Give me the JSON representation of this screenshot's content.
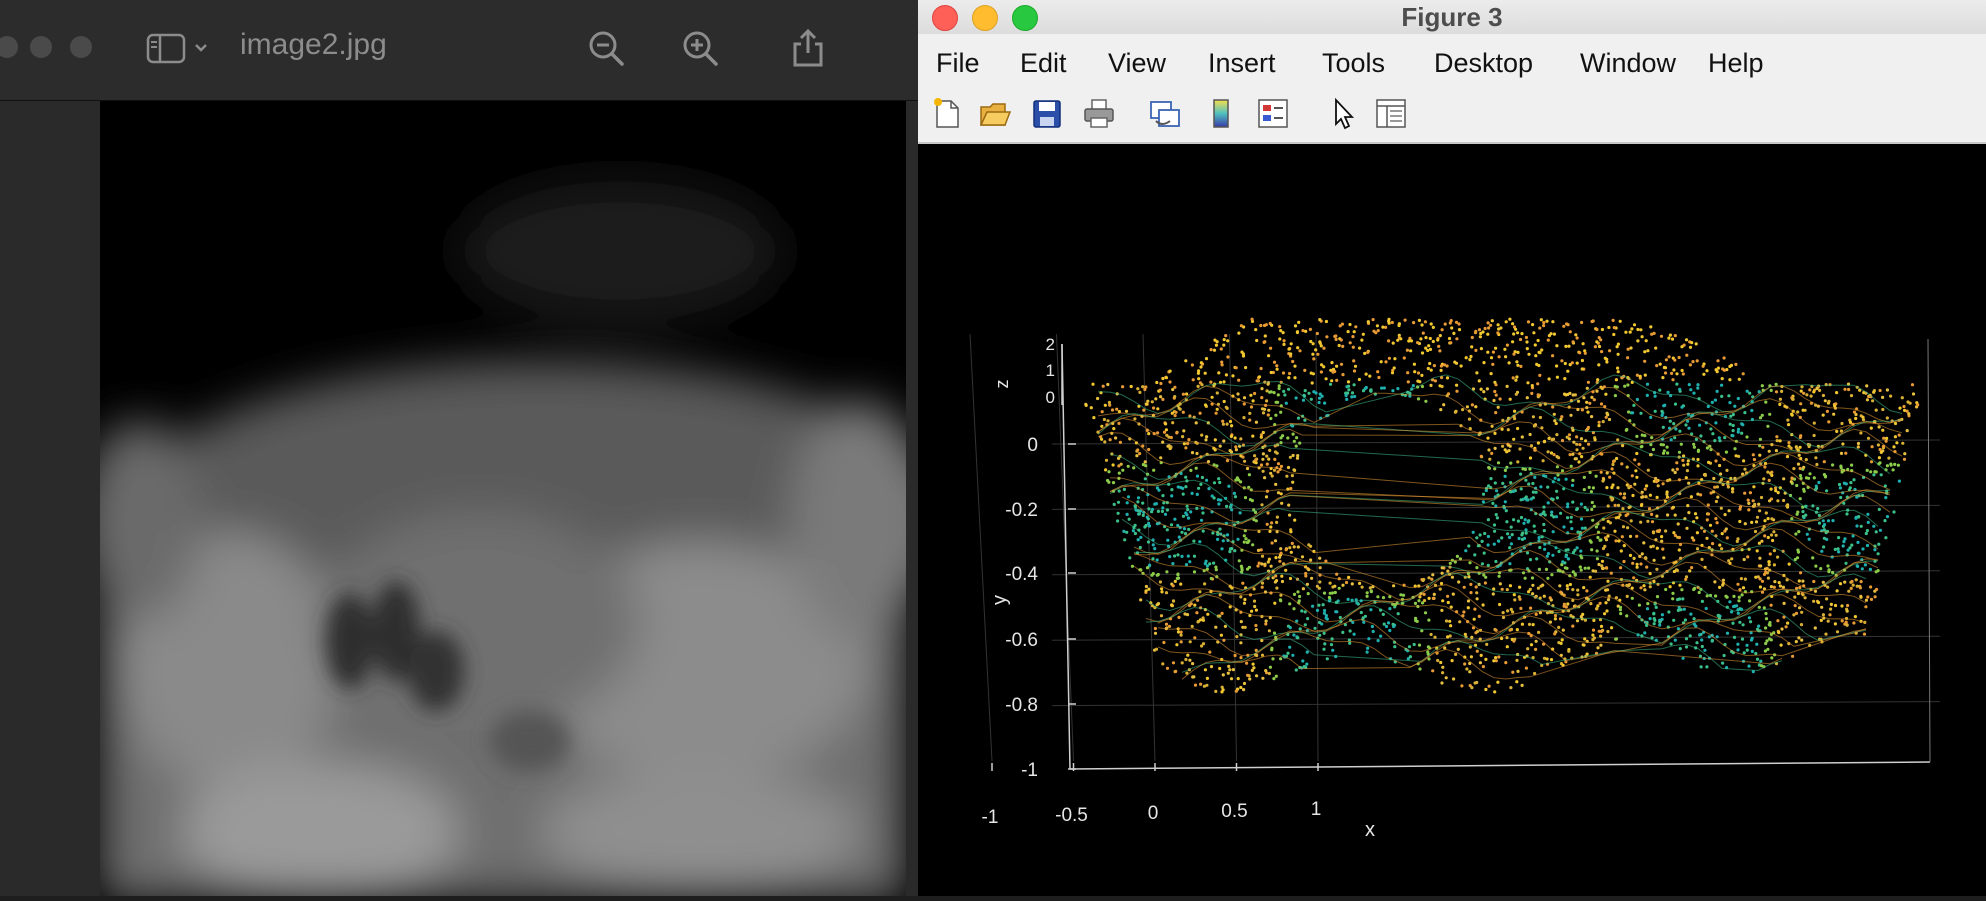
{
  "preview": {
    "title": "image2.jpg",
    "tools": [
      {
        "name": "zoom-out-icon"
      },
      {
        "name": "zoom-in-icon"
      },
      {
        "name": "share-icon"
      }
    ]
  },
  "figure": {
    "title": "Figure 3",
    "menu": [
      "File",
      "Edit",
      "View",
      "Insert",
      "Tools",
      "Desktop",
      "Window",
      "Help"
    ],
    "toolbar": [
      "new-figure-icon",
      "open-file-icon",
      "save-icon",
      "print-icon",
      "link-plot-icon",
      "colorbar-icon",
      "legend-icon",
      "edit-plot-pointer-icon",
      "property-inspector-icon"
    ],
    "colors": {
      "accent_yellow": "#f2c830",
      "accent_orange": "#e89a35",
      "accent_green": "#3cc08a",
      "accent_teal": "#1fb0b0"
    }
  },
  "chart_data": {
    "type": "scatter",
    "title": "",
    "xlabel": "x",
    "ylabel": "y",
    "zlabel": "z",
    "xticks": [
      "-1",
      "-0.5",
      "0",
      "0.5",
      "1"
    ],
    "yticks": [
      "0",
      "-0.2",
      "-0.4",
      "-0.6",
      "-0.8",
      "-1"
    ],
    "zticks": [
      "2",
      "1",
      "0"
    ],
    "xlim": [
      -1.25,
      1.4
    ],
    "ylim": [
      -1,
      0
    ],
    "grid": true,
    "colormap": "parula (yellow at top, teal/green at depth)"
  }
}
